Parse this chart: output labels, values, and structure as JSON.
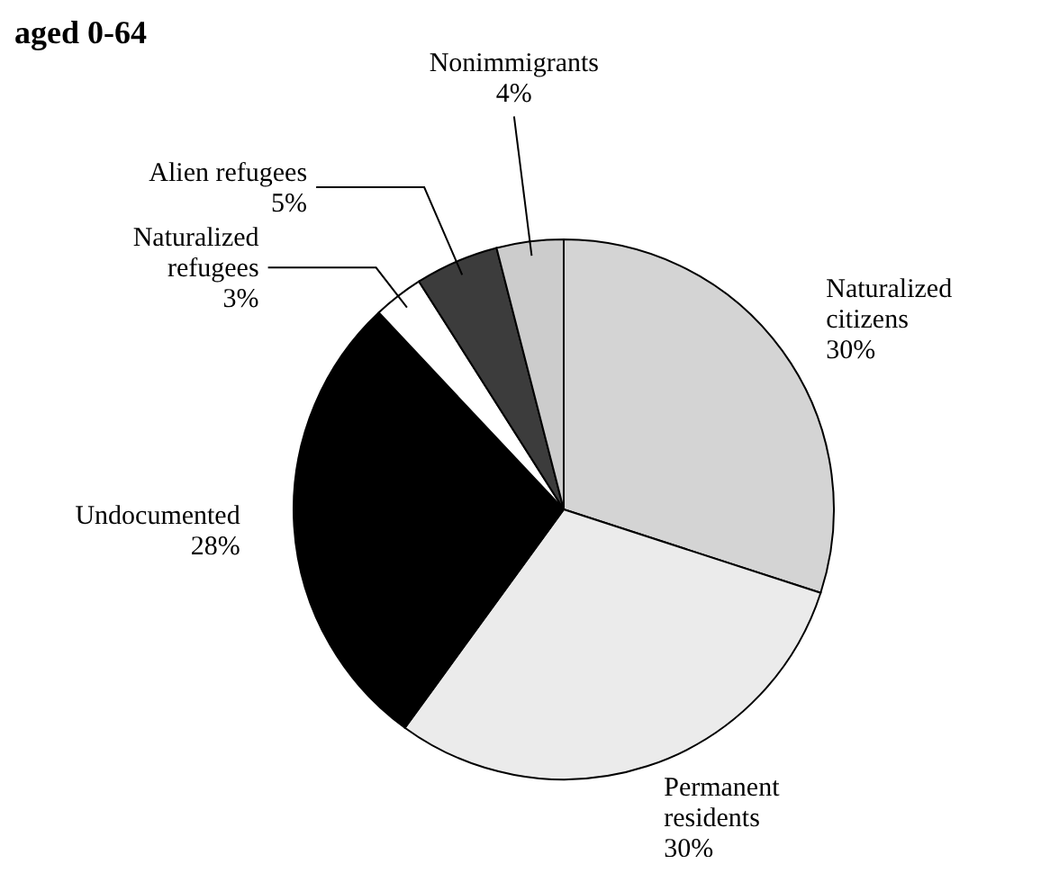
{
  "chart_data": {
    "type": "pie",
    "title": "aged 0-64",
    "categories": [
      "Naturalized citizens",
      "Permanent residents",
      "Undocumented",
      "Naturalized refugees",
      "Alien refugees",
      "Nonimmigrants"
    ],
    "values": [
      30,
      30,
      28,
      3,
      5,
      4
    ],
    "value_labels": [
      "30%",
      "30%",
      "28%",
      "3%",
      "5%",
      "4%"
    ],
    "colors": [
      "#d4d4d4",
      "#ebebeb",
      "#000000",
      "#ffffff",
      "#3c3c3c",
      "#cccccc"
    ],
    "legend": false
  }
}
